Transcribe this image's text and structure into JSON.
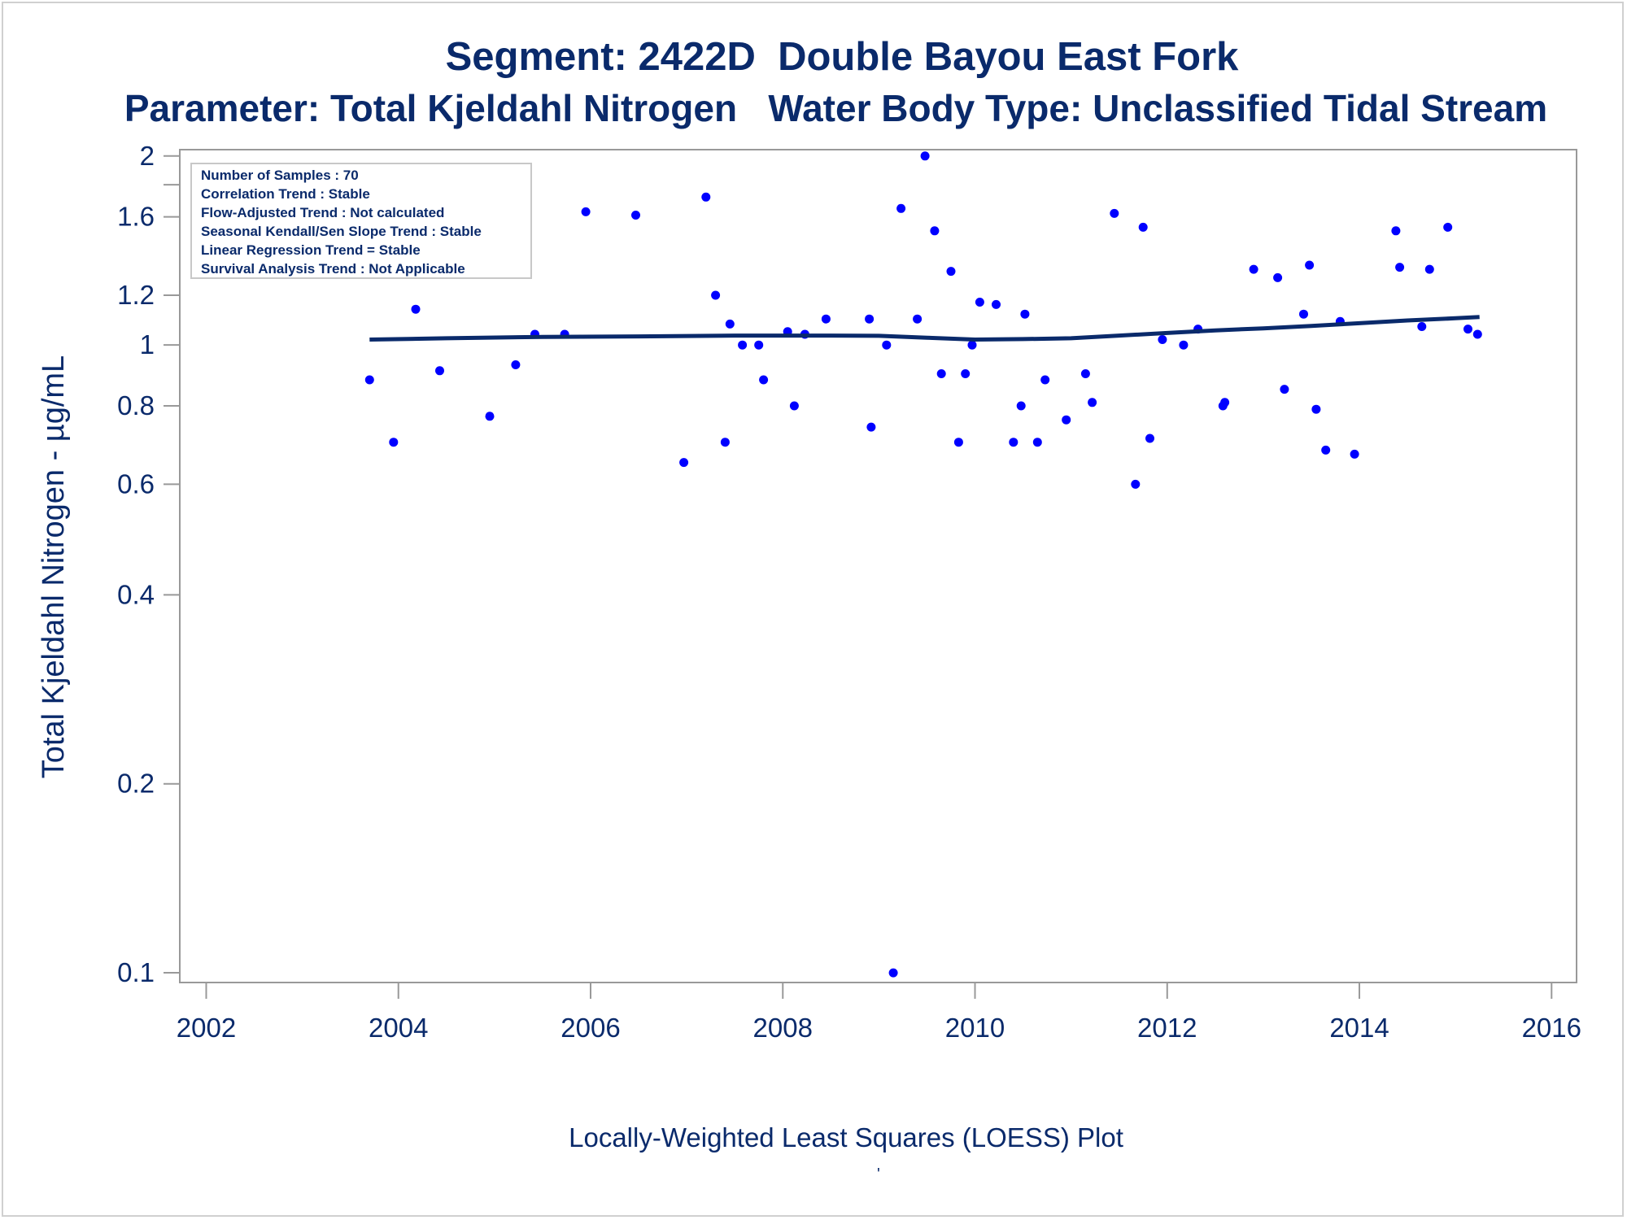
{
  "page": {
    "title_line1": "Segment: 2422D  Double Bayou East Fork",
    "title_line2": "Parameter: Total Kjeldahl Nitrogen   Water Body Type: Unclassified Tidal Stream",
    "footnote": "Locally-Weighted Least Squares (LOESS) Plot",
    "footnote_mark": "'"
  },
  "colors": {
    "text": "#0a2a6b",
    "points": "#0000ff",
    "loess_line": "#0a2a6b",
    "axis": "#999999"
  },
  "info_box": {
    "lines": [
      "Number of Samples : 70",
      "Correlation Trend : Stable",
      "Flow-Adjusted Trend : Not calculated",
      "Seasonal Kendall/Sen Slope Trend : Stable",
      "Linear Regression Trend = Stable",
      "Survival Analysis Trend : Not Applicable"
    ]
  },
  "chart_data": {
    "type": "scatter",
    "title": "Segment: 2422D  Double Bayou East Fork",
    "subtitle": "Parameter: Total Kjeldahl Nitrogen   Water Body Type: Unclassified Tidal Stream",
    "xlabel": "",
    "ylabel": "Total Kjeldahl Nitrogen -  µg/mL",
    "xlim": [
      2002,
      2016
    ],
    "ylim": [
      0.1,
      2
    ],
    "y_scale": "log",
    "x_ticks": [
      2002,
      2004,
      2006,
      2008,
      2010,
      2012,
      2014,
      2016
    ],
    "y_ticks": [
      0.1,
      0.2,
      0.4,
      0.6,
      0.8,
      1,
      1.2,
      1.6,
      2
    ],
    "legend": "top-left",
    "grid": false,
    "series": [
      {
        "type": "scatter",
        "points": [
          [
            2003.7,
            0.88
          ],
          [
            2003.95,
            0.7
          ],
          [
            2004.18,
            1.14
          ],
          [
            2004.43,
            0.91
          ],
          [
            2004.95,
            0.77
          ],
          [
            2005.22,
            0.93
          ],
          [
            2005.42,
            1.04
          ],
          [
            2005.73,
            1.04
          ],
          [
            2005.95,
            1.63
          ],
          [
            2006.47,
            1.61
          ],
          [
            2006.97,
            0.65
          ],
          [
            2007.2,
            1.72
          ],
          [
            2007.3,
            1.2
          ],
          [
            2007.4,
            0.7
          ],
          [
            2007.45,
            1.08
          ],
          [
            2007.58,
            1.0
          ],
          [
            2007.75,
            1.0
          ],
          [
            2007.8,
            0.88
          ],
          [
            2008.05,
            1.05
          ],
          [
            2008.12,
            0.8
          ],
          [
            2008.23,
            1.04
          ],
          [
            2008.45,
            1.1
          ],
          [
            2008.9,
            1.1
          ],
          [
            2008.92,
            0.74
          ],
          [
            2009.08,
            1.0
          ],
          [
            2009.15,
            0.1
          ],
          [
            2009.23,
            1.65
          ],
          [
            2009.4,
            1.1
          ],
          [
            2009.48,
            2.0
          ],
          [
            2009.58,
            1.52
          ],
          [
            2009.65,
            0.9
          ],
          [
            2009.75,
            1.31
          ],
          [
            2009.83,
            0.7
          ],
          [
            2009.9,
            0.9
          ],
          [
            2009.97,
            1.0
          ],
          [
            2010.05,
            1.17
          ],
          [
            2010.22,
            1.16
          ],
          [
            2010.4,
            0.7
          ],
          [
            2010.48,
            0.8
          ],
          [
            2010.52,
            1.12
          ],
          [
            2010.65,
            0.7
          ],
          [
            2010.73,
            0.88
          ],
          [
            2010.95,
            0.76
          ],
          [
            2011.15,
            0.9
          ],
          [
            2011.22,
            0.81
          ],
          [
            2011.45,
            1.62
          ],
          [
            2011.67,
            0.6
          ],
          [
            2011.75,
            1.54
          ],
          [
            2011.82,
            0.71
          ],
          [
            2011.95,
            1.02
          ],
          [
            2012.17,
            1.0
          ],
          [
            2012.32,
            1.06
          ],
          [
            2012.58,
            0.8
          ],
          [
            2012.6,
            0.81
          ],
          [
            2012.9,
            1.32
          ],
          [
            2013.15,
            1.28
          ],
          [
            2013.22,
            0.85
          ],
          [
            2013.42,
            1.12
          ],
          [
            2013.48,
            1.34
          ],
          [
            2013.55,
            0.79
          ],
          [
            2013.65,
            0.68
          ],
          [
            2013.8,
            1.09
          ],
          [
            2013.95,
            0.67
          ],
          [
            2014.38,
            1.52
          ],
          [
            2014.42,
            1.33
          ],
          [
            2014.65,
            1.07
          ],
          [
            2014.73,
            1.32
          ],
          [
            2014.92,
            1.54
          ],
          [
            2015.13,
            1.06
          ],
          [
            2015.23,
            1.04
          ]
        ]
      },
      {
        "type": "line",
        "points": [
          [
            2003.7,
            1.02
          ],
          [
            2004.5,
            1.025
          ],
          [
            2005.5,
            1.03
          ],
          [
            2006.5,
            1.032
          ],
          [
            2007.5,
            1.035
          ],
          [
            2008.5,
            1.035
          ],
          [
            2009.0,
            1.034
          ],
          [
            2009.5,
            1.027
          ],
          [
            2010.0,
            1.02
          ],
          [
            2010.5,
            1.022
          ],
          [
            2011.0,
            1.025
          ],
          [
            2011.5,
            1.035
          ],
          [
            2012.0,
            1.045
          ],
          [
            2012.5,
            1.055
          ],
          [
            2013.0,
            1.063
          ],
          [
            2013.5,
            1.072
          ],
          [
            2014.0,
            1.083
          ],
          [
            2014.5,
            1.094
          ],
          [
            2015.0,
            1.103
          ],
          [
            2015.25,
            1.108
          ]
        ]
      }
    ]
  }
}
